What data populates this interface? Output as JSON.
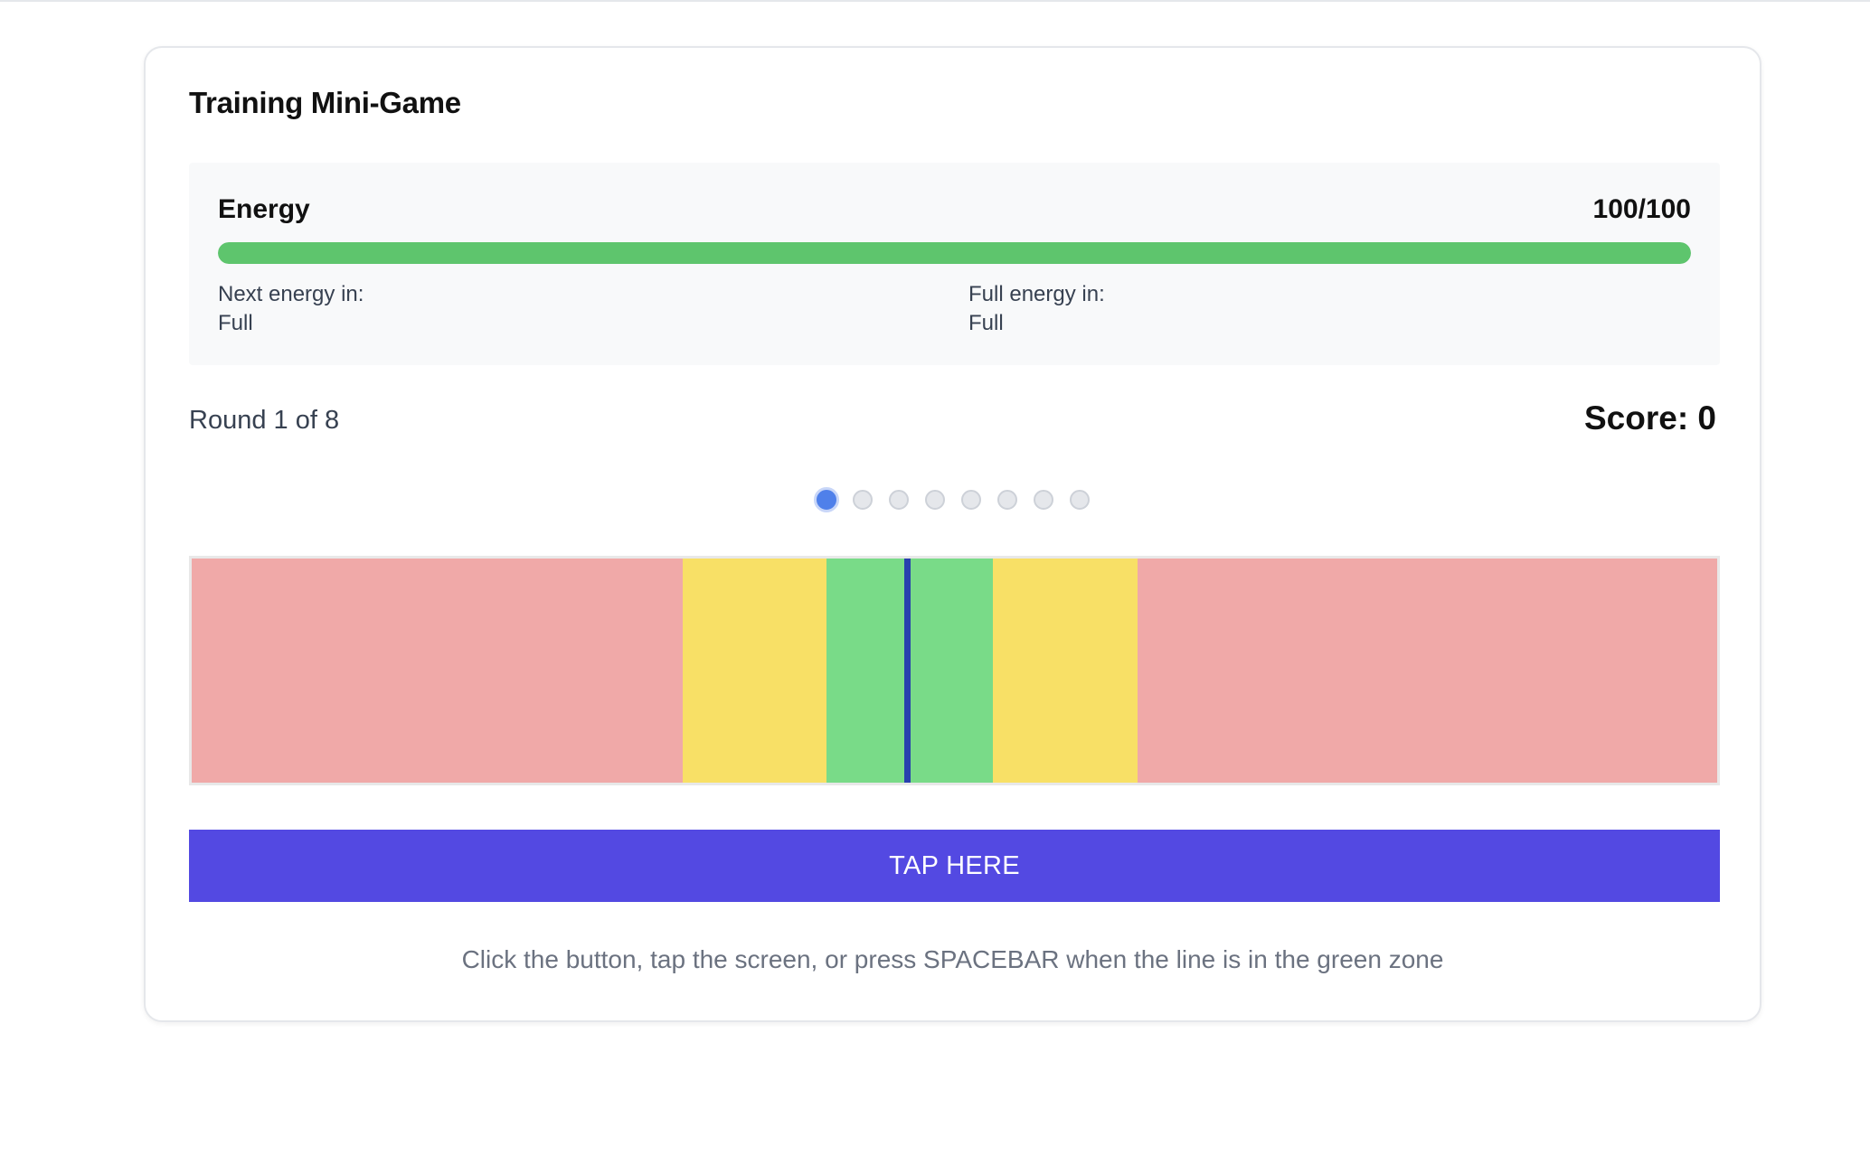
{
  "game": {
    "title": "Training Mini-Game"
  },
  "energy": {
    "label": "Energy",
    "value_text": "100/100",
    "current": 100,
    "max": 100,
    "bar_color": "#5ec56d",
    "next_label": "Next energy in:",
    "next_value": "Full",
    "full_label": "Full energy in:",
    "full_value": "Full"
  },
  "round": {
    "text": "Round 1 of 8",
    "current": 1,
    "total": 8
  },
  "score": {
    "text": "Score: 0"
  },
  "progress_dots": {
    "count": 8,
    "active_index": 0,
    "active_color": "#4f80ea",
    "inactive_color": "#e5e7eb"
  },
  "meter": {
    "zones": [
      {
        "name": "red-left",
        "color": "#f0a9a8",
        "from": 0.0,
        "to": 0.322
      },
      {
        "name": "yellow-left",
        "color": "#f8e066",
        "from": 0.322,
        "to": 0.416
      },
      {
        "name": "green",
        "color": "#79db88",
        "from": 0.416,
        "to": 0.525
      },
      {
        "name": "yellow-right",
        "color": "#f8e066",
        "from": 0.525,
        "to": 0.62
      },
      {
        "name": "red-right",
        "color": "#f0a9a8",
        "from": 0.62,
        "to": 1.0
      }
    ],
    "indicator_position": 0.469,
    "indicator_color": "#283fae"
  },
  "actions": {
    "tap_label": "TAP HERE",
    "tap_color": "#5349e2"
  },
  "hint": {
    "text": "Click the button, tap the screen, or press SPACEBAR when the line is in the green zone"
  }
}
